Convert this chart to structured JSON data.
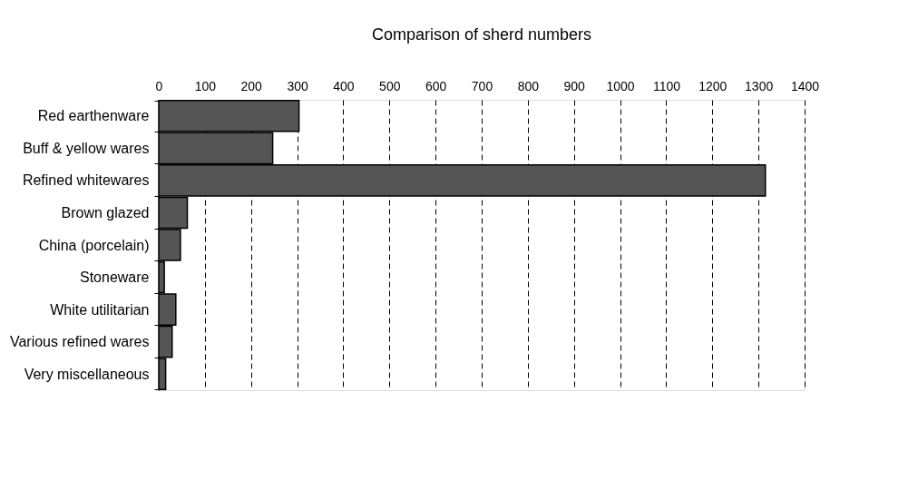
{
  "chart_data": {
    "type": "bar",
    "orientation": "horizontal",
    "title": "Comparison of sherd numbers",
    "categories": [
      "Red earthenware",
      "Buff & yellow wares",
      "Refined whitewares",
      "Brown glazed",
      "China (porcelain)",
      "Stoneware",
      "White utilitarian",
      "Various refined wares",
      "Very miscellaneous"
    ],
    "values": [
      304,
      247,
      1315,
      62,
      47,
      12,
      37,
      29,
      15
    ],
    "color": "#555555",
    "xlim": [
      0,
      1400
    ],
    "xticks": [
      0,
      100,
      200,
      300,
      400,
      500,
      600,
      700,
      800,
      900,
      1000,
      1100,
      1200,
      1300,
      1400
    ],
    "grid": "x",
    "line_style": "dashed"
  }
}
